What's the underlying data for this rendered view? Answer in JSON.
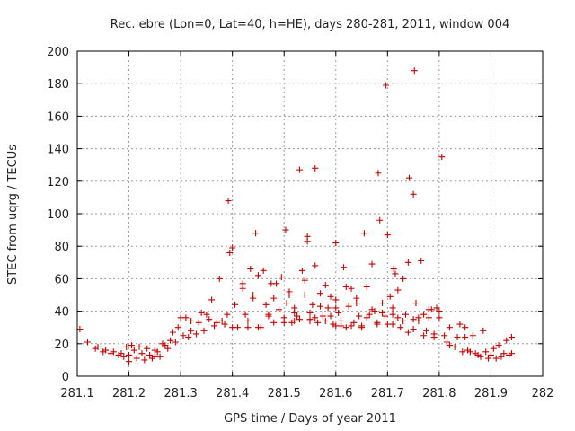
{
  "chart_data": {
    "type": "scatter",
    "title": "Rec. ebre (Lon=0, Lat=40, h=HE), days 280-281, 2011, window 004",
    "xlabel": "GPS time / Days of year 2011",
    "ylabel": "STEC from uqrg / TECUs",
    "xlim": [
      281.1,
      282
    ],
    "ylim": [
      0,
      200
    ],
    "xticks": [
      "281.1",
      "281.2",
      "281.3",
      "281.4",
      "281.5",
      "281.6",
      "281.7",
      "281.8",
      "281.9",
      "282"
    ],
    "yticks": [
      "0",
      "20",
      "40",
      "60",
      "80",
      "100",
      "120",
      "140",
      "160",
      "180",
      "200"
    ],
    "grid": true,
    "marker": "+",
    "color": "#cc0000",
    "points": [
      [
        281.105,
        29
      ],
      [
        281.12,
        21
      ],
      [
        281.135,
        17
      ],
      [
        281.14,
        18
      ],
      [
        281.15,
        15
      ],
      [
        281.155,
        16
      ],
      [
        281.165,
        14
      ],
      [
        281.17,
        15
      ],
      [
        281.18,
        13
      ],
      [
        281.185,
        14
      ],
      [
        281.19,
        12
      ],
      [
        281.195,
        18
      ],
      [
        281.2,
        13
      ],
      [
        281.205,
        19
      ],
      [
        281.21,
        16
      ],
      [
        281.215,
        11
      ],
      [
        281.22,
        18
      ],
      [
        281.225,
        14
      ],
      [
        281.23,
        10
      ],
      [
        281.235,
        17
      ],
      [
        281.24,
        13
      ],
      [
        281.245,
        11
      ],
      [
        281.25,
        16
      ],
      [
        281.255,
        15
      ],
      [
        281.26,
        12
      ],
      [
        281.265,
        20
      ],
      [
        281.27,
        19
      ],
      [
        281.275,
        17
      ],
      [
        281.28,
        22
      ],
      [
        281.285,
        27
      ],
      [
        281.29,
        21
      ],
      [
        281.295,
        30
      ],
      [
        281.3,
        36
      ],
      [
        281.305,
        25
      ],
      [
        281.31,
        36
      ],
      [
        281.315,
        24
      ],
      [
        281.32,
        28
      ],
      [
        281.33,
        26
      ],
      [
        281.335,
        33
      ],
      [
        281.34,
        39
      ],
      [
        281.345,
        28
      ],
      [
        281.35,
        38
      ],
      [
        281.355,
        35
      ],
      [
        281.36,
        47
      ],
      [
        281.365,
        31
      ],
      [
        281.37,
        33
      ],
      [
        281.375,
        60
      ],
      [
        281.38,
        34
      ],
      [
        281.385,
        32
      ],
      [
        281.39,
        38
      ],
      [
        281.392,
        108
      ],
      [
        281.395,
        76
      ],
      [
        281.4,
        79
      ],
      [
        281.405,
        44
      ],
      [
        281.41,
        30
      ],
      [
        281.42,
        57
      ],
      [
        281.42,
        54
      ],
      [
        281.425,
        38
      ],
      [
        281.43,
        30
      ],
      [
        281.435,
        66
      ],
      [
        281.44,
        50
      ],
      [
        281.445,
        88
      ],
      [
        281.45,
        62
      ],
      [
        281.455,
        30
      ],
      [
        281.46,
        65
      ],
      [
        281.465,
        44
      ],
      [
        281.47,
        38
      ],
      [
        281.475,
        57
      ],
      [
        281.48,
        33
      ],
      [
        281.485,
        57
      ],
      [
        281.49,
        41
      ],
      [
        281.495,
        61
      ],
      [
        281.5,
        36
      ],
      [
        281.503,
        90
      ],
      [
        281.505,
        45
      ],
      [
        281.51,
        52
      ],
      [
        281.515,
        33
      ],
      [
        281.52,
        39
      ],
      [
        281.525,
        37
      ],
      [
        281.53,
        35
      ],
      [
        281.53,
        127
      ],
      [
        281.535,
        65
      ],
      [
        281.54,
        59
      ],
      [
        281.545,
        86
      ],
      [
        281.545,
        83
      ],
      [
        281.55,
        35
      ],
      [
        281.555,
        44
      ],
      [
        281.56,
        128
      ],
      [
        281.56,
        68
      ],
      [
        281.565,
        33
      ],
      [
        281.57,
        51
      ],
      [
        281.575,
        37
      ],
      [
        281.58,
        34
      ],
      [
        281.585,
        42
      ],
      [
        281.59,
        49
      ],
      [
        281.595,
        32
      ],
      [
        281.6,
        82
      ],
      [
        281.6,
        47
      ],
      [
        281.605,
        39
      ],
      [
        281.61,
        31
      ],
      [
        281.615,
        67
      ],
      [
        281.62,
        30
      ],
      [
        281.625,
        43
      ],
      [
        281.63,
        54
      ],
      [
        281.635,
        33
      ],
      [
        281.64,
        48
      ],
      [
        281.645,
        37
      ],
      [
        281.65,
        31
      ],
      [
        281.655,
        88
      ],
      [
        281.66,
        55
      ],
      [
        281.665,
        38
      ],
      [
        281.67,
        69
      ],
      [
        281.675,
        40
      ],
      [
        281.68,
        32
      ],
      [
        281.682,
        125
      ],
      [
        281.685,
        96
      ],
      [
        281.69,
        45
      ],
      [
        281.695,
        37
      ],
      [
        281.697,
        179
      ],
      [
        281.7,
        87
      ],
      [
        281.705,
        49
      ],
      [
        281.71,
        42
      ],
      [
        281.712,
        66
      ],
      [
        281.715,
        63
      ],
      [
        281.72,
        53
      ],
      [
        281.725,
        30
      ],
      [
        281.73,
        60
      ],
      [
        281.735,
        38
      ],
      [
        281.74,
        70
      ],
      [
        281.742,
        122
      ],
      [
        281.75,
        112
      ],
      [
        281.752,
        188
      ],
      [
        281.755,
        45
      ],
      [
        281.76,
        34
      ],
      [
        281.765,
        71
      ],
      [
        281.77,
        38
      ],
      [
        281.775,
        28
      ],
      [
        281.78,
        36
      ],
      [
        281.785,
        41
      ],
      [
        281.79,
        24
      ],
      [
        281.795,
        42
      ],
      [
        281.8,
        36
      ],
      [
        281.805,
        135
      ],
      [
        281.81,
        25
      ],
      [
        281.815,
        21
      ],
      [
        281.82,
        30
      ],
      [
        281.83,
        18
      ],
      [
        281.835,
        24
      ],
      [
        281.84,
        32
      ],
      [
        281.845,
        15
      ],
      [
        281.85,
        30
      ],
      [
        281.855,
        16
      ],
      [
        281.86,
        15
      ],
      [
        281.865,
        25
      ],
      [
        281.87,
        14
      ],
      [
        281.875,
        13
      ],
      [
        281.88,
        12
      ],
      [
        281.885,
        28
      ],
      [
        281.89,
        15
      ],
      [
        281.895,
        11
      ],
      [
        281.9,
        13
      ],
      [
        281.905,
        17
      ],
      [
        281.91,
        11
      ],
      [
        281.915,
        19
      ],
      [
        281.92,
        12
      ],
      [
        281.925,
        14
      ],
      [
        281.93,
        22
      ],
      [
        281.935,
        13
      ],
      [
        281.94,
        24
      ],
      [
        281.94,
        14
      ],
      [
        281.2,
        9
      ],
      [
        281.25,
        12
      ],
      [
        281.32,
        34
      ],
      [
        281.4,
        30
      ],
      [
        281.45,
        30
      ],
      [
        281.5,
        33
      ],
      [
        281.55,
        34
      ],
      [
        281.6,
        31
      ],
      [
        281.65,
        30
      ],
      [
        281.7,
        32
      ],
      [
        281.75,
        29
      ],
      [
        281.8,
        40
      ],
      [
        281.85,
        24
      ],
      [
        281.6,
        42
      ],
      [
        281.62,
        55
      ],
      [
        281.51,
        50
      ],
      [
        281.48,
        48
      ],
      [
        281.44,
        48
      ],
      [
        281.66,
        36
      ],
      [
        281.69,
        39
      ],
      [
        281.73,
        34
      ],
      [
        281.76,
        36
      ],
      [
        281.78,
        41
      ],
      [
        281.79,
        26
      ],
      [
        281.82,
        19
      ],
      [
        281.55,
        39
      ],
      [
        281.57,
        43
      ],
      [
        281.59,
        37
      ],
      [
        281.64,
        45
      ],
      [
        281.71,
        32
      ],
      [
        281.74,
        27
      ],
      [
        281.77,
        25
      ],
      [
        281.52,
        42
      ],
      [
        281.54,
        50
      ],
      [
        281.58,
        56
      ],
      [
        281.63,
        31
      ],
      [
        281.67,
        41
      ],
      [
        281.71,
        38
      ],
      [
        281.75,
        35
      ],
      [
        281.43,
        34
      ],
      [
        281.47,
        37
      ],
      [
        281.52,
        34
      ],
      [
        281.56,
        36
      ],
      [
        281.61,
        34
      ],
      [
        281.68,
        33
      ],
      [
        281.72,
        36
      ]
    ]
  }
}
